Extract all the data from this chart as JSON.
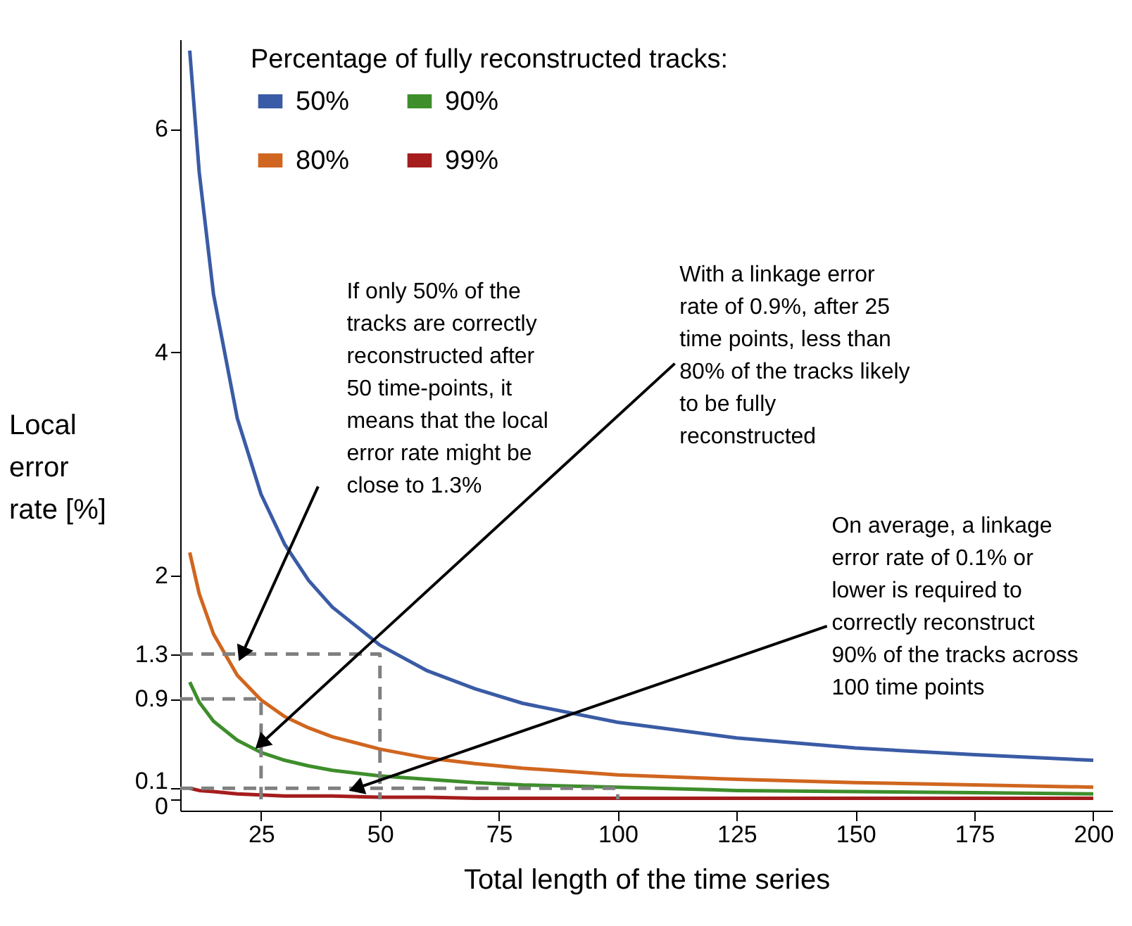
{
  "chart_data": {
    "type": "line",
    "xlabel": "Total length of the time series",
    "ylabel": "Local error rate [%]",
    "legend_title": "Percentage of fully reconstructed tracks:",
    "legend": "top left",
    "grid": false,
    "line_style": "solid",
    "marker": "none",
    "xlim": [
      8,
      204
    ],
    "xticks": [
      25,
      50,
      75,
      100,
      125,
      150,
      175,
      200
    ],
    "ylim": [
      -0.1,
      6.8
    ],
    "yticks": [
      0,
      0.1,
      0.9,
      1.3,
      2,
      4,
      6
    ],
    "x": [
      10,
      12,
      15,
      20,
      25,
      30,
      35,
      40,
      50,
      60,
      70,
      80,
      100,
      125,
      150,
      175,
      200
    ],
    "series": [
      {
        "name": "50%",
        "color": "#3a5ba5",
        "values": [
          6.7,
          5.61,
          4.52,
          3.41,
          2.73,
          2.28,
          1.96,
          1.72,
          1.38,
          1.15,
          0.99,
          0.86,
          0.69,
          0.55,
          0.46,
          0.4,
          0.35
        ]
      },
      {
        "name": "80%",
        "color": "#d0661f",
        "values": [
          2.21,
          1.84,
          1.48,
          1.11,
          0.89,
          0.74,
          0.64,
          0.56,
          0.45,
          0.37,
          0.32,
          0.28,
          0.22,
          0.18,
          0.15,
          0.13,
          0.11
        ]
      },
      {
        "name": "90%",
        "color": "#3e8e2c",
        "values": [
          1.05,
          0.87,
          0.7,
          0.53,
          0.42,
          0.35,
          0.3,
          0.26,
          0.21,
          0.18,
          0.15,
          0.13,
          0.11,
          0.08,
          0.07,
          0.06,
          0.05
        ]
      },
      {
        "name": "99%",
        "color": "#a51d1d",
        "values": [
          0.1,
          0.08,
          0.07,
          0.05,
          0.04,
          0.03,
          0.03,
          0.03,
          0.02,
          0.02,
          0.01,
          0.01,
          0.01,
          0.01,
          0.01,
          0.01,
          0.01
        ]
      },
      {
        "color": "#808080",
        "line_style": "dashed",
        "x": [
          8,
          50,
          50
        ],
        "values": [
          1.3,
          1.3,
          0
        ]
      },
      {
        "color": "#808080",
        "line_style": "dashed",
        "x": [
          8,
          25,
          25
        ],
        "values": [
          0.9,
          0.9,
          0
        ]
      },
      {
        "color": "#808080",
        "line_style": "dashed",
        "x": [
          8,
          100,
          100
        ],
        "values": [
          0.1,
          0.1,
          0
        ]
      }
    ],
    "annotations": [
      {
        "text": "If only 50% of the tracks are correctly reconstructed after 50 time-points, it means that the local error rate might be close to 1.3%",
        "x": 21,
        "y": 1.3
      },
      {
        "text": "With a linkage error rate of 0.9%, after 25 time points, less than 80% of the tracks likely to be fully reconstructed",
        "x": 25,
        "y": 0.5
      },
      {
        "text": "On average, a linkage error rate of 0.1% or lower is required to correctly reconstruct 90% of the tracks across 100 time points",
        "x": 45,
        "y": 0.1
      }
    ]
  }
}
